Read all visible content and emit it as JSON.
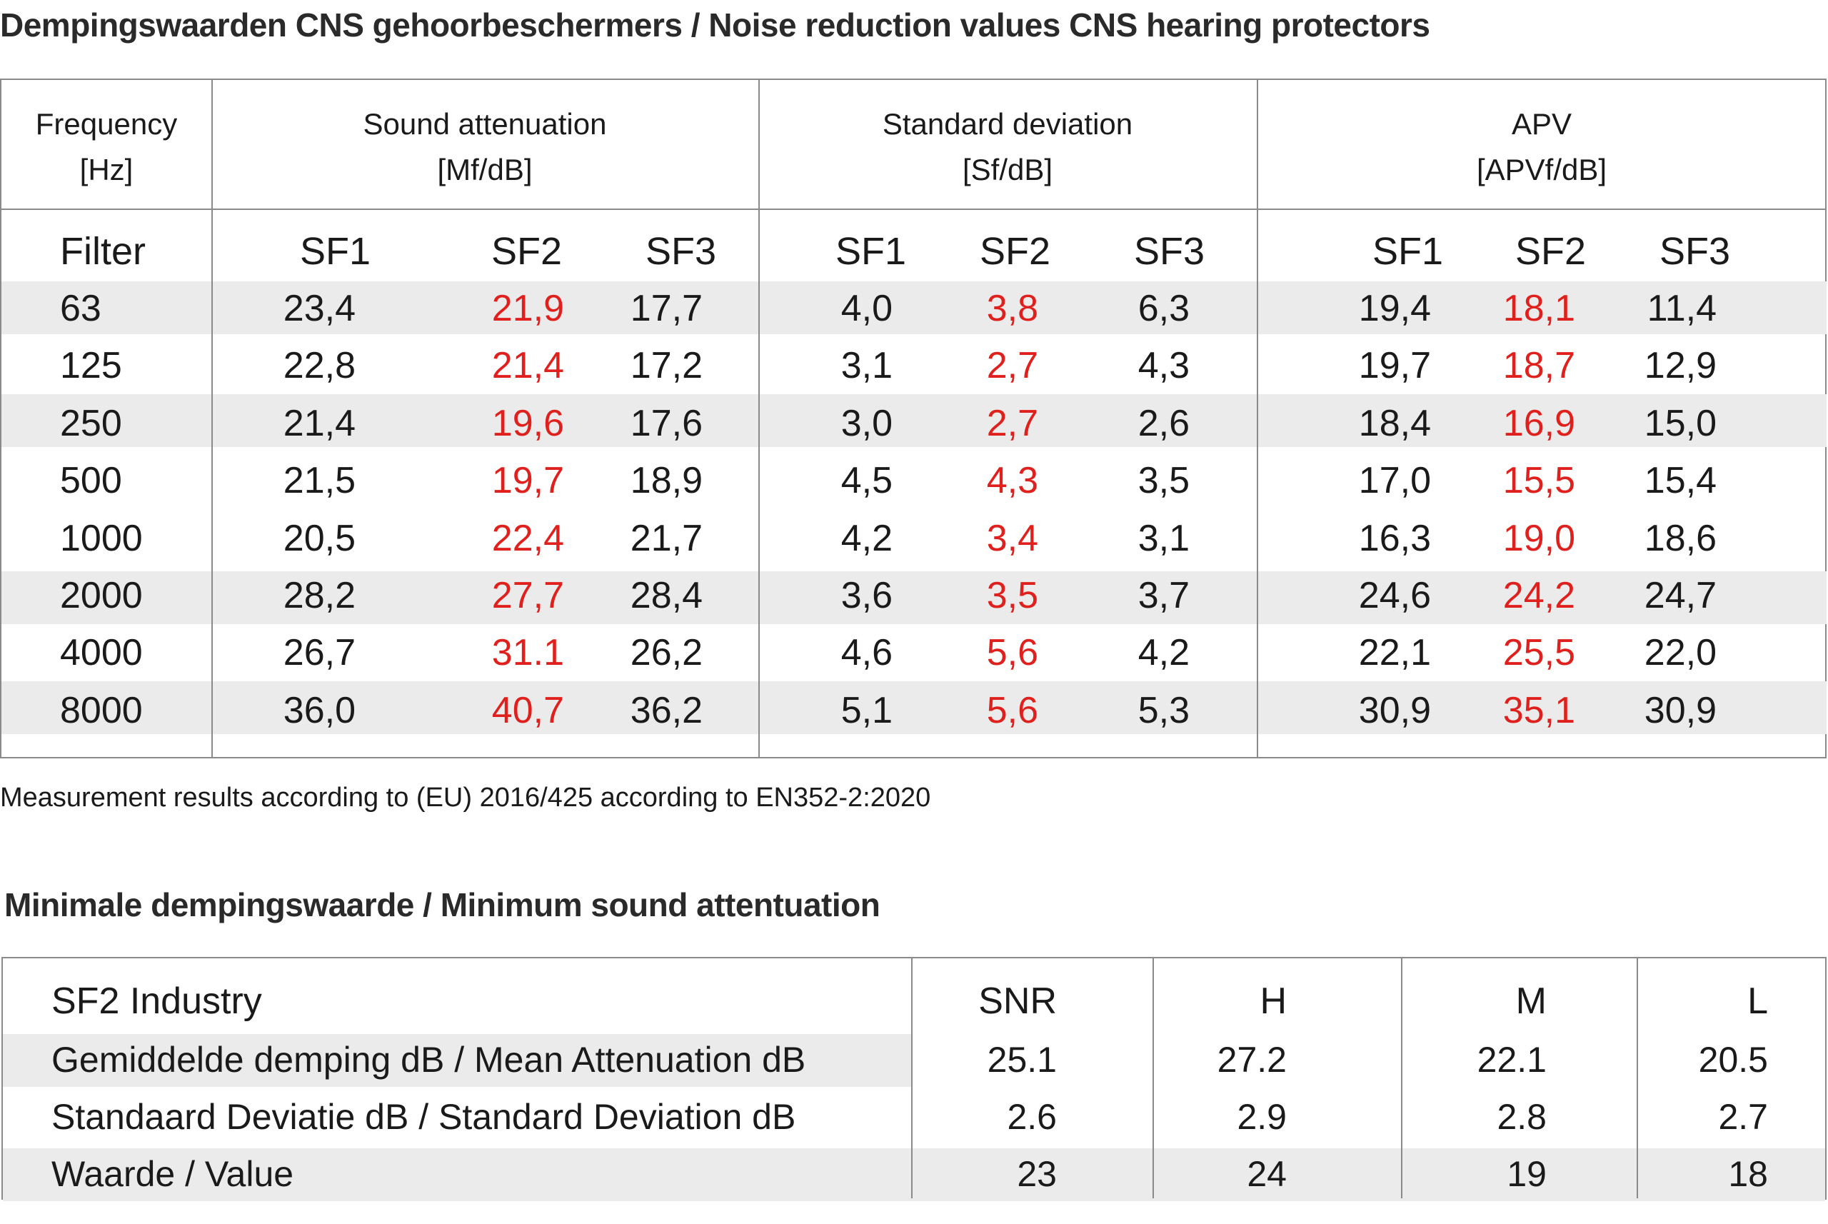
{
  "title": "Dempingswaarden CNS gehoorbeschermers /  Noise reduction values CNS hearing protectors",
  "table1": {
    "headers": {
      "frequency": {
        "line1": "Frequency",
        "line2": "[Hz]"
      },
      "attenuation": {
        "line1": "Sound attenuation",
        "line2": "[Mf/dB]"
      },
      "deviation": {
        "line1": "Standard deviation",
        "line2": "[Sf/dB]"
      },
      "apv": {
        "line1": "APV",
        "line2": "[APVf/dB]"
      }
    },
    "filter_label": "Filter",
    "sub_labels": [
      "SF1",
      "SF2",
      "SF3"
    ],
    "rows": [
      {
        "freq": "63",
        "att": [
          "23,4",
          "21,9",
          "17,7"
        ],
        "dev": [
          "4,0",
          "3,8",
          "6,3"
        ],
        "apv": [
          "19,4",
          "18,1",
          "11,4"
        ]
      },
      {
        "freq": "125",
        "att": [
          "22,8",
          "21,4",
          "17,2"
        ],
        "dev": [
          "3,1",
          "2,7",
          "4,3"
        ],
        "apv": [
          "19,7",
          "18,7",
          "12,9"
        ]
      },
      {
        "freq": "250",
        "att": [
          "21,4",
          "19,6",
          "17,6"
        ],
        "dev": [
          "3,0",
          "2,7",
          "2,6"
        ],
        "apv": [
          "18,4",
          "16,9",
          "15,0"
        ]
      },
      {
        "freq": "500",
        "att": [
          "21,5",
          "19,7",
          "18,9"
        ],
        "dev": [
          "4,5",
          "4,3",
          "3,5"
        ],
        "apv": [
          "17,0",
          "15,5",
          "15,4"
        ]
      },
      {
        "freq": "1000",
        "att": [
          "20,5",
          "22,4",
          "21,7"
        ],
        "dev": [
          "4,2",
          "3,4",
          "3,1"
        ],
        "apv": [
          "16,3",
          "19,0",
          "18,6"
        ]
      },
      {
        "freq": "2000",
        "att": [
          "28,2",
          "27,7",
          "28,4"
        ],
        "dev": [
          "3,6",
          "3,5",
          "3,7"
        ],
        "apv": [
          "24,6",
          "24,2",
          "24,7"
        ]
      },
      {
        "freq": "4000",
        "att": [
          "26,7",
          "31.1",
          "26,2"
        ],
        "dev": [
          "4,6",
          "5,6",
          "4,2"
        ],
        "apv": [
          "22,1",
          "25,5",
          "22,0"
        ]
      },
      {
        "freq": "8000",
        "att": [
          "36,0",
          "40,7",
          "36,2"
        ],
        "dev": [
          "5,1",
          "5,6",
          "5,3"
        ],
        "apv": [
          "30,9",
          "35,1",
          "30,9"
        ]
      }
    ]
  },
  "footnote": "Measurement results according to (EU) 2016/425 according to EN352-2:2020",
  "title2": "Minimale dempingswaarde / Minimum sound attentuation",
  "table2": {
    "header_label": "SF2 Industry",
    "columns": [
      "SNR",
      "H",
      "M",
      "L"
    ],
    "rows": [
      {
        "label": "Gemiddelde demping dB / Mean Attenuation dB",
        "values": [
          "25.1",
          "27.2",
          "22.1",
          "20.5"
        ]
      },
      {
        "label": "Standaard Deviatie dB / Standard Deviation dB",
        "values": [
          "2.6",
          "2.9",
          "2.8",
          "2.7"
        ]
      },
      {
        "label": "Waarde / Value",
        "values": [
          "23",
          "24",
          "19",
          "18"
        ]
      }
    ]
  },
  "colors": {
    "highlight_red": "#e0201c",
    "stripe_gray": "#ebebeb",
    "border_gray": "#8a8a8a"
  }
}
